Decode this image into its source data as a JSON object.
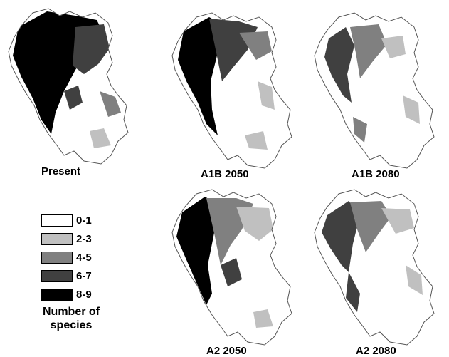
{
  "panels": [
    {
      "label": "Present",
      "scenario": "present"
    },
    {
      "label": "A1B 2050",
      "scenario": "a1b2050"
    },
    {
      "label": "A1B 2080",
      "scenario": "a1b2080"
    },
    {
      "label": "A2 2050",
      "scenario": "a2_2050"
    },
    {
      "label": "A2 2080",
      "scenario": "a2_2080"
    }
  ],
  "legend": {
    "title": "Number of species",
    "classes": [
      {
        "label": "0-1",
        "color": "#ffffff"
      },
      {
        "label": "2-3",
        "color": "#c0c0c0"
      },
      {
        "label": "4-5",
        "color": "#808080"
      },
      {
        "label": "6-7",
        "color": "#404040"
      },
      {
        "label": "8-9",
        "color": "#000000"
      }
    ]
  }
}
